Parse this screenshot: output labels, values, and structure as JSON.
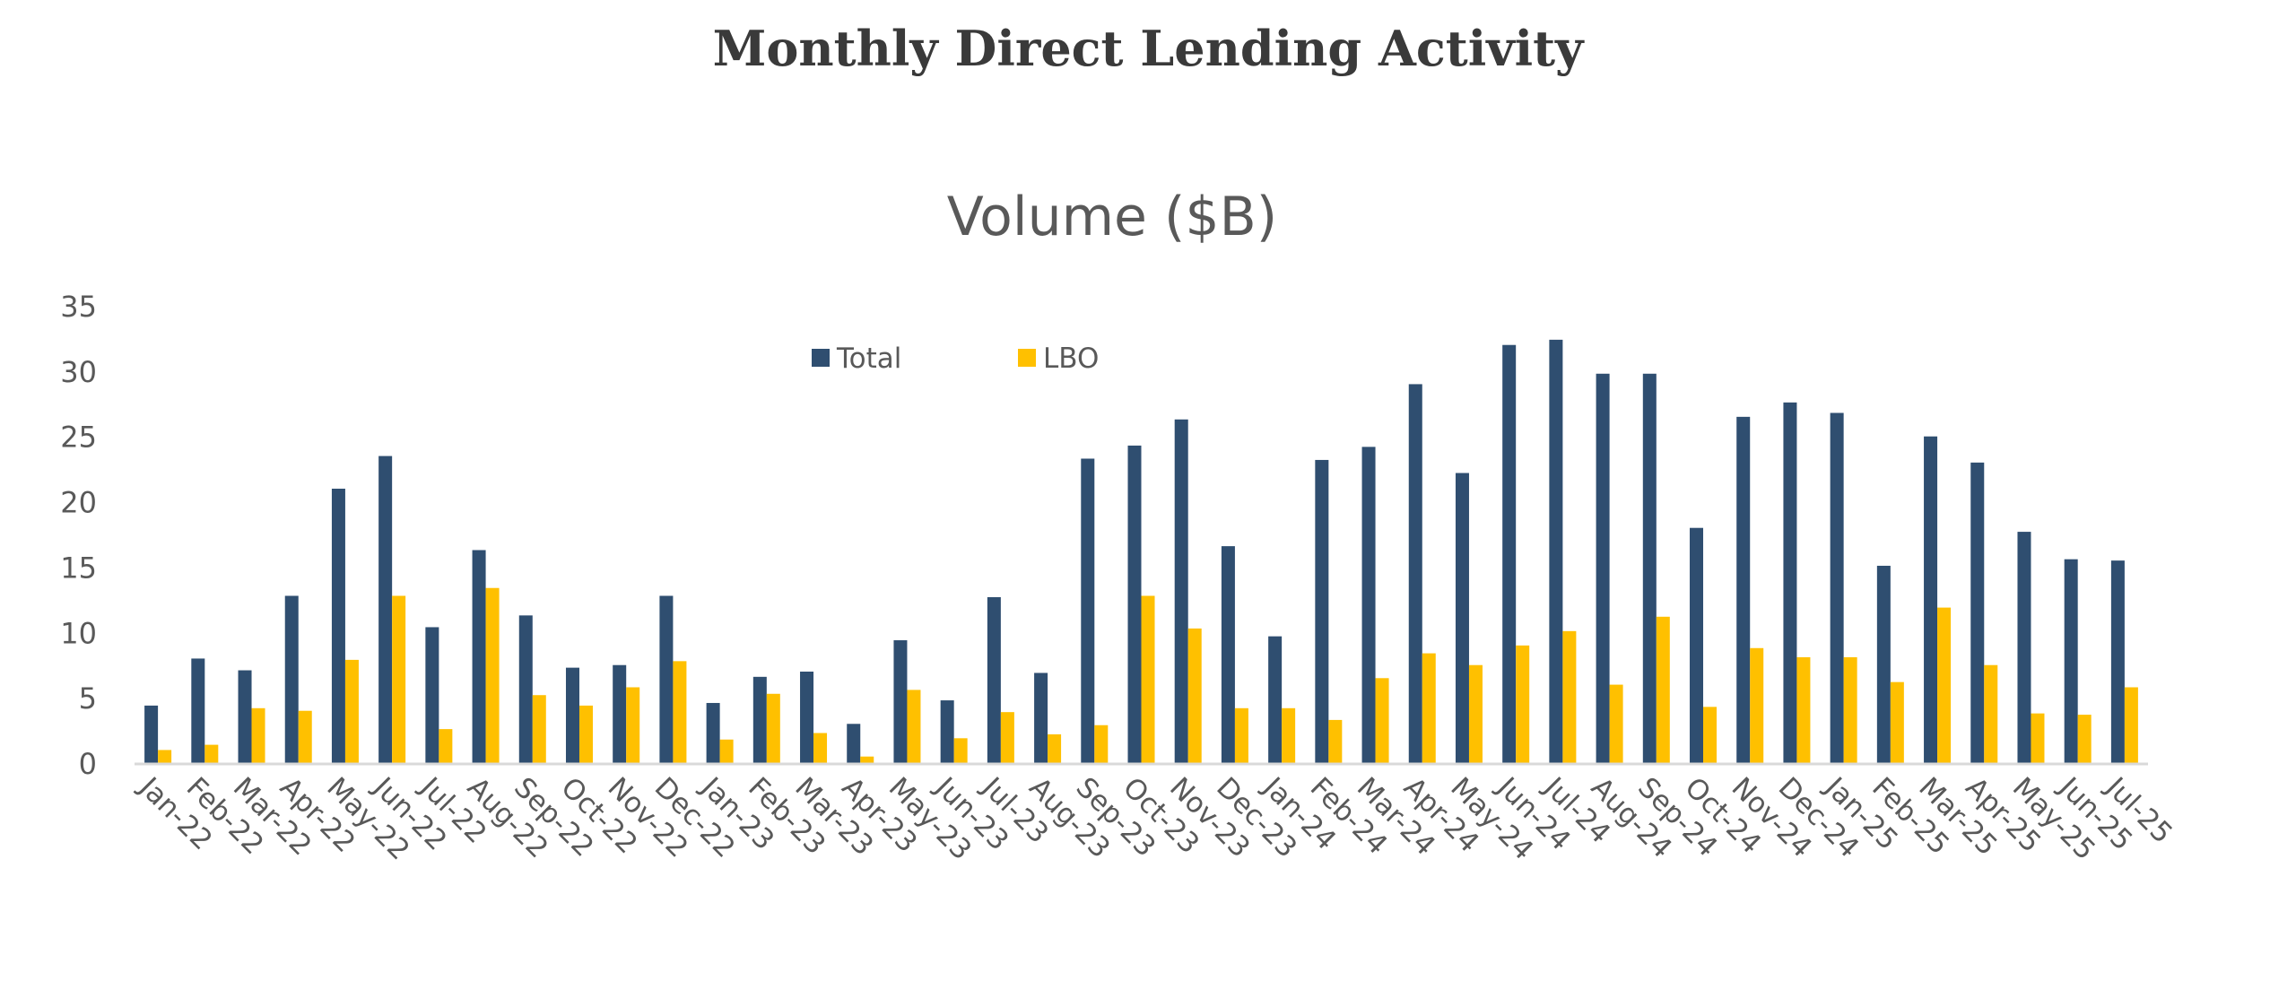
{
  "page_title": "Monthly Direct Lending Activity",
  "chart_data": {
    "type": "bar",
    "title": "Volume ($B)",
    "xlabel": "",
    "ylabel": "",
    "ylim": [
      0,
      35
    ],
    "yticks": [
      0,
      5,
      10,
      15,
      20,
      25,
      30,
      35
    ],
    "grid": false,
    "legend_position": "top-center",
    "categories": [
      "Jan-22",
      "Feb-22",
      "Mar-22",
      "Apr-22",
      "May-22",
      "Jun-22",
      "Jul-22",
      "Aug-22",
      "Sep-22",
      "Oct-22",
      "Nov-22",
      "Dec-22",
      "Jan-23",
      "Feb-23",
      "Mar-23",
      "Apr-23",
      "May-23",
      "Jun-23",
      "Jul-23",
      "Aug-23",
      "Sep-23",
      "Oct-23",
      "Nov-23",
      "Dec-23",
      "Jan-24",
      "Feb-24",
      "Mar-24",
      "Apr-24",
      "May-24",
      "Jun-24",
      "Jul-24",
      "Aug-24",
      "Sep-24",
      "Oct-24",
      "Nov-24",
      "Dec-24",
      "Jan-25",
      "Feb-25",
      "Mar-25",
      "Apr-25",
      "May-25",
      "Jun-25",
      "Jul-25"
    ],
    "series": [
      {
        "name": "Total",
        "color": "#2F4E70",
        "values": [
          4.4,
          8.0,
          7.1,
          12.8,
          21.0,
          23.5,
          10.4,
          16.3,
          11.3,
          7.3,
          7.5,
          12.8,
          4.6,
          6.6,
          7.0,
          3.0,
          9.4,
          4.8,
          12.7,
          6.9,
          23.3,
          24.3,
          26.3,
          16.6,
          9.7,
          23.2,
          24.2,
          29.0,
          22.2,
          32.0,
          32.4,
          29.8,
          29.8,
          18.0,
          26.5,
          27.6,
          26.8,
          15.1,
          25.0,
          23.0,
          17.7,
          15.6,
          15.5
        ]
      },
      {
        "name": "LBO",
        "color": "#FFC000",
        "values": [
          1.0,
          1.4,
          4.2,
          4.0,
          7.9,
          12.8,
          2.6,
          13.4,
          5.2,
          4.4,
          5.8,
          7.8,
          1.8,
          5.3,
          2.3,
          0.5,
          5.6,
          1.9,
          3.9,
          2.2,
          2.9,
          12.8,
          10.3,
          4.2,
          4.2,
          3.3,
          6.5,
          8.4,
          7.5,
          9.0,
          10.1,
          6.0,
          11.2,
          4.3,
          8.8,
          8.1,
          8.1,
          6.2,
          11.9,
          7.5,
          3.8,
          3.7,
          5.8
        ]
      }
    ]
  }
}
